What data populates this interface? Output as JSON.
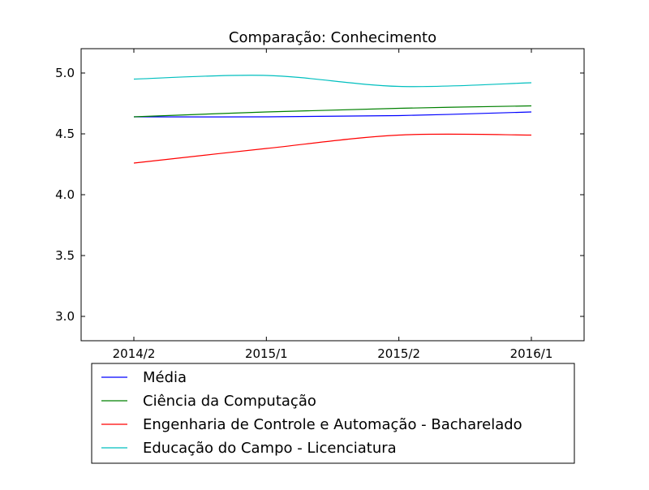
{
  "chart_data": {
    "type": "line",
    "title": "Comparação: Conhecimento",
    "xlabel": "",
    "ylabel": "",
    "categories": [
      "2014/2",
      "2015/1",
      "2015/2",
      "2016/1"
    ],
    "x_ticks": [
      "2014/2",
      "2015/1",
      "2015/2",
      "2016/1"
    ],
    "y_ticks": [
      "3.0",
      "3.5",
      "4.0",
      "4.5",
      "5.0"
    ],
    "ylim": [
      2.8,
      5.2
    ],
    "grid": false,
    "legend_position": "bottom",
    "series": [
      {
        "name": "Média",
        "color": "#0000ff",
        "values": [
          4.64,
          4.64,
          4.65,
          4.68
        ]
      },
      {
        "name": "Ciência da Computação",
        "color": "#008000",
        "values": [
          4.64,
          4.68,
          4.71,
          4.73
        ]
      },
      {
        "name": "Engenharia de Controle e Automação - Bacharelado",
        "color": "#ff0000",
        "values": [
          4.26,
          4.38,
          4.49,
          4.49
        ]
      },
      {
        "name": "Educação do Campo - Licenciatura",
        "color": "#00bfbf",
        "values": [
          4.95,
          4.98,
          4.89,
          4.92
        ]
      }
    ]
  }
}
